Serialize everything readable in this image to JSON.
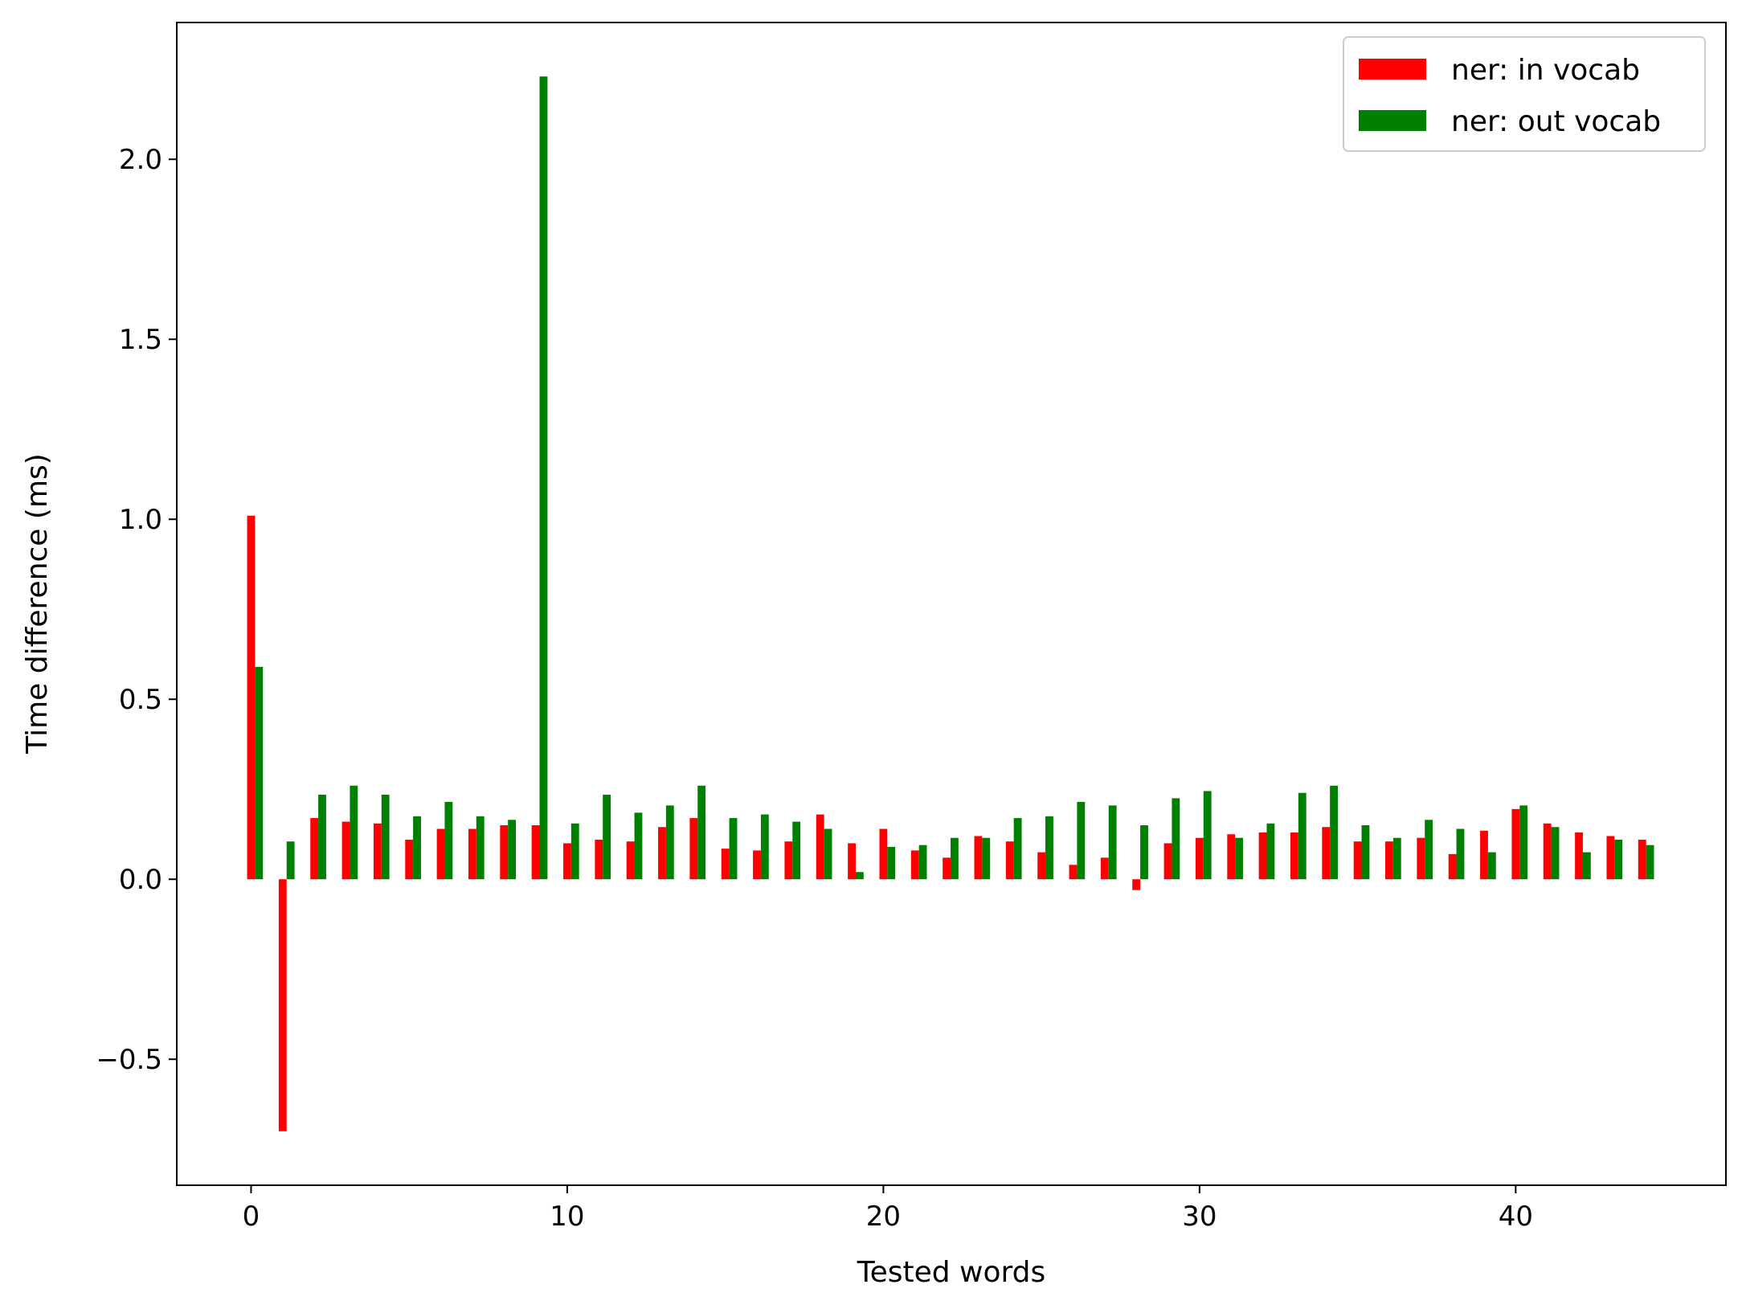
{
  "chart_data": {
    "type": "bar",
    "title": "",
    "xlabel": "Tested words",
    "ylabel": "Time difference (ms)",
    "xlim": [
      -2.35,
      46.65
    ],
    "ylim": [
      -0.85,
      2.38
    ],
    "xticks": [
      0,
      10,
      20,
      30,
      40
    ],
    "yticks": [
      -0.5,
      0.0,
      0.5,
      1.0,
      1.5,
      2.0
    ],
    "ytick_labels": [
      "−0.5",
      "0.0",
      "0.5",
      "1.0",
      "1.5",
      "2.0"
    ],
    "bar_width": 0.25,
    "grid": false,
    "legend_position": "top-right",
    "x": [
      0,
      1,
      2,
      3,
      4,
      5,
      6,
      7,
      8,
      9,
      10,
      11,
      12,
      13,
      14,
      15,
      16,
      17,
      18,
      19,
      20,
      21,
      22,
      23,
      24,
      25,
      26,
      27,
      28,
      29,
      30,
      31,
      32,
      33,
      34,
      35,
      36,
      37,
      38,
      39,
      40,
      41,
      42,
      43,
      44
    ],
    "series": [
      {
        "name": "ner: in vocab",
        "color": "#ff0000",
        "offset": 0,
        "values": [
          1.01,
          -0.7,
          0.17,
          0.16,
          0.155,
          0.11,
          0.14,
          0.14,
          0.15,
          0.15,
          0.1,
          0.11,
          0.105,
          0.145,
          0.17,
          0.085,
          0.08,
          0.105,
          0.18,
          0.1,
          0.14,
          0.08,
          0.06,
          0.12,
          0.105,
          0.075,
          0.04,
          0.06,
          -0.03,
          0.1,
          0.115,
          0.125,
          0.13,
          0.13,
          0.145,
          0.105,
          0.105,
          0.115,
          0.07,
          0.135,
          0.195,
          0.155,
          0.13,
          0.12,
          0.11
        ]
      },
      {
        "name": "ner: out vocab",
        "color": "#008000",
        "offset": 0.25,
        "values": [
          0.59,
          0.105,
          0.235,
          0.26,
          0.235,
          0.175,
          0.215,
          0.175,
          0.165,
          2.23,
          0.155,
          0.235,
          0.185,
          0.205,
          0.26,
          0.17,
          0.18,
          0.16,
          0.14,
          0.02,
          0.09,
          0.095,
          0.115,
          0.115,
          0.17,
          0.175,
          0.215,
          0.205,
          0.15,
          0.225,
          0.245,
          0.115,
          0.155,
          0.24,
          0.26,
          0.15,
          0.115,
          0.165,
          0.14,
          0.075,
          0.205,
          0.145,
          0.075,
          0.11,
          0.095
        ]
      }
    ]
  }
}
